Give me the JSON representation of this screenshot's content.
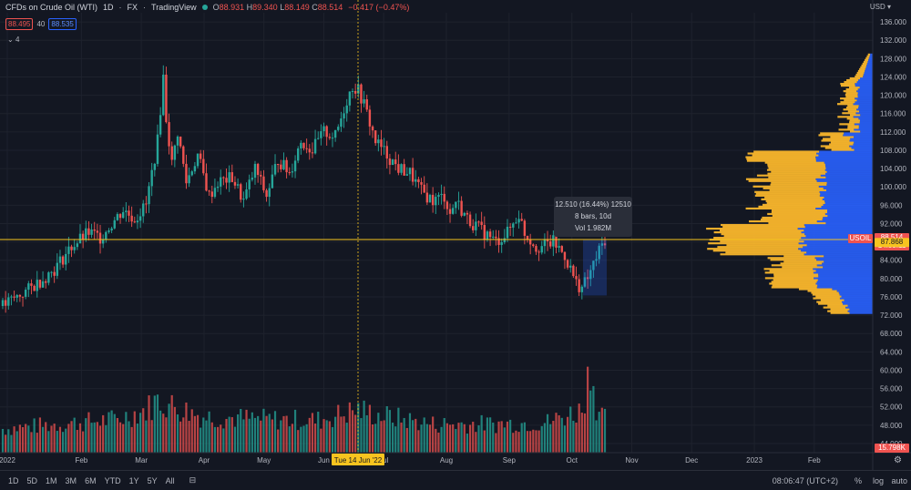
{
  "header": {
    "symbol": "CFDs on Crude Oil (WTI)",
    "interval": "1D",
    "exchange": "FX",
    "source": "TradingView",
    "open": "88.931",
    "high": "89.340",
    "low": "88.149",
    "close": "88.514",
    "change": "−0.417 (−0.47%)",
    "o_label": "O",
    "h_label": "H",
    "l_label": "L",
    "c_label": "C"
  },
  "trade": {
    "sell": "88.495",
    "spread": "40",
    "buy": "88.535"
  },
  "indicators_collapsed": "4",
  "currency": "USD",
  "colors": {
    "up": "#26a69a",
    "down": "#ef5350",
    "poc": "#f7c41f",
    "vol_blue": "#2962ff",
    "vol_orange": "#f9b62c",
    "bg": "#131722"
  },
  "tooltip": {
    "line1": "12.510 (16.44%) 12510",
    "line2": "8 bars, 10d",
    "line3": "Vol 1.982M"
  },
  "crosshair_label": "Tue 14 Jun '22",
  "price_labels": {
    "usoil_tag": "USOIL",
    "last_price": "88.514",
    "countdown": "14:53:11",
    "poc_price": "87.868",
    "volume": "15.798K"
  },
  "bottom_bar": {
    "timeframes": [
      "1D",
      "5D",
      "1M",
      "3M",
      "6M",
      "YTD",
      "1Y",
      "5Y",
      "All"
    ],
    "time": "08:06:47 (UTC+2)",
    "percent": "%",
    "log": "log",
    "auto": "auto"
  },
  "chart_data": {
    "type": "candlestick",
    "y_axis": {
      "ticks": [
        "136.000",
        "132.000",
        "128.000",
        "124.000",
        "120.000",
        "116.000",
        "112.000",
        "108.000",
        "104.000",
        "100.000",
        "96.000",
        "92.000",
        "88.000",
        "84.000",
        "80.000",
        "76.000",
        "72.000",
        "68.000",
        "64.000",
        "60.000",
        "56.000",
        "52.000",
        "48.000",
        "44.000"
      ],
      "range": [
        42,
        138
      ]
    },
    "x_axis": {
      "ticks": [
        "2022",
        "Feb",
        "Mar",
        "Apr",
        "May",
        "Jun",
        "Jul",
        "Aug",
        "Sep",
        "Oct",
        "Nov",
        "Dec",
        "2023",
        "Feb"
      ]
    },
    "price_anchors": [
      [
        0,
        74
      ],
      [
        10,
        78
      ],
      [
        18,
        82
      ],
      [
        24,
        87
      ],
      [
        30,
        90
      ],
      [
        34,
        89
      ],
      [
        38,
        92
      ],
      [
        42,
        95
      ],
      [
        46,
        93
      ],
      [
        50,
        96
      ],
      [
        54,
        110
      ],
      [
        56,
        124
      ],
      [
        57,
        115
      ],
      [
        59,
        105
      ],
      [
        61,
        112
      ],
      [
        64,
        101
      ],
      [
        68,
        107
      ],
      [
        72,
        98
      ],
      [
        75,
        101
      ],
      [
        80,
        102
      ],
      [
        84,
        97
      ],
      [
        88,
        104
      ],
      [
        92,
        98
      ],
      [
        96,
        106
      ],
      [
        100,
        103
      ],
      [
        104,
        110
      ],
      [
        108,
        108
      ],
      [
        112,
        112
      ],
      [
        116,
        111
      ],
      [
        120,
        119
      ],
      [
        122,
        122
      ],
      [
        124,
        121
      ],
      [
        126,
        118
      ],
      [
        128,
        114
      ],
      [
        130,
        110
      ],
      [
        134,
        107
      ],
      [
        138,
        104
      ],
      [
        142,
        103
      ],
      [
        146,
        99
      ],
      [
        150,
        97
      ],
      [
        154,
        98
      ],
      [
        156,
        94
      ],
      [
        158,
        97
      ],
      [
        162,
        93
      ],
      [
        166,
        91
      ],
      [
        170,
        89
      ],
      [
        172,
        88
      ],
      [
        176,
        90
      ],
      [
        178,
        92
      ],
      [
        180,
        94
      ],
      [
        182,
        90
      ],
      [
        186,
        87
      ],
      [
        188,
        87
      ],
      [
        192,
        88
      ],
      [
        196,
        85
      ],
      [
        198,
        82
      ],
      [
        200,
        79
      ],
      [
        202,
        78
      ],
      [
        204,
        80
      ],
      [
        206,
        83
      ],
      [
        208,
        86
      ],
      [
        210,
        88.5
      ]
    ],
    "volume_anchors": [
      [
        0,
        0.25
      ],
      [
        20,
        0.3
      ],
      [
        40,
        0.35
      ],
      [
        50,
        0.45
      ],
      [
        54,
        0.55
      ],
      [
        58,
        0.5
      ],
      [
        70,
        0.38
      ],
      [
        90,
        0.35
      ],
      [
        110,
        0.34
      ],
      [
        124,
        0.45
      ],
      [
        130,
        0.4
      ],
      [
        150,
        0.3
      ],
      [
        170,
        0.3
      ],
      [
        190,
        0.32
      ],
      [
        202,
        0.45
      ],
      [
        205,
        0.95
      ],
      [
        207,
        0.5
      ],
      [
        210,
        0.35
      ]
    ],
    "candle_count": 211,
    "last_price": 88.514,
    "poc_price": 87.868
  }
}
